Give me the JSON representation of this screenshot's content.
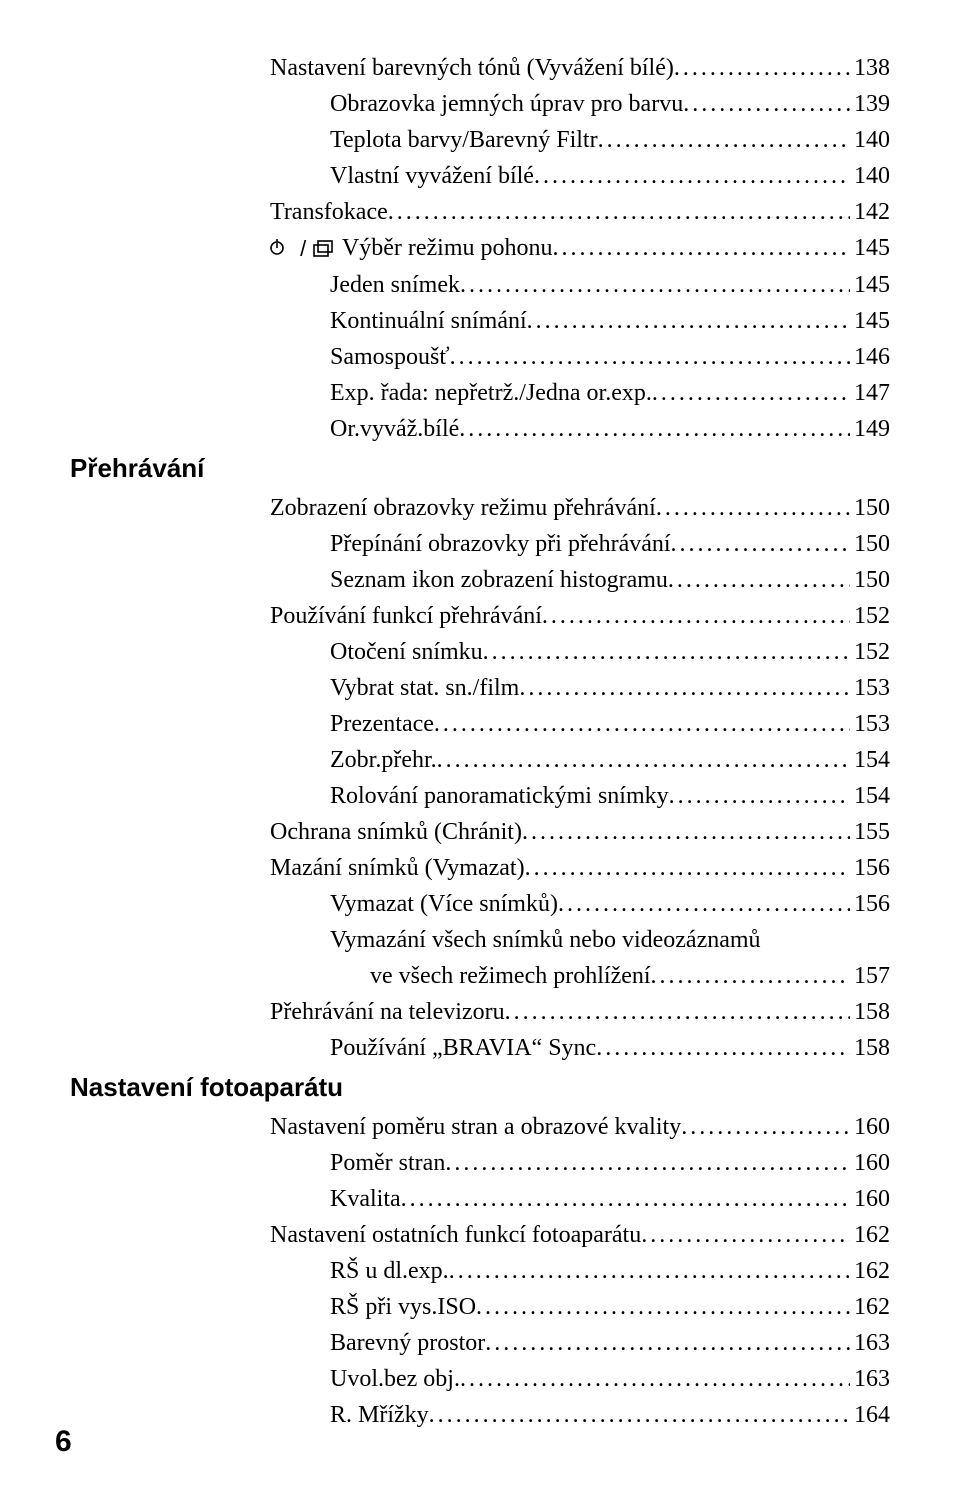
{
  "colors": {
    "text": "#000000",
    "background": "#ffffff"
  },
  "typography": {
    "body_font": "Times New Roman",
    "body_size_pt": 18,
    "heading_font": "Arial",
    "heading_weight": "bold",
    "heading_size_pt": 20
  },
  "page_number": "6",
  "entries": [
    {
      "indent": 1,
      "label": "Nastavení barevných tónů (Vyvážení bílé)",
      "page": "138"
    },
    {
      "indent": 2,
      "label": "Obrazovka jemných úprav pro barvu",
      "page": "139"
    },
    {
      "indent": 2,
      "label": "Teplota barvy/Barevný Filtr",
      "page": "140"
    },
    {
      "indent": 2,
      "label": "Vlastní vyvážení bílé",
      "page": "140"
    },
    {
      "indent": 1,
      "label": "Transfokace",
      "page": "142"
    },
    {
      "indent": 1,
      "icon": "drivemode",
      "label": " Výběr režimu pohonu",
      "page": "145"
    },
    {
      "indent": 2,
      "label": "Jeden snímek",
      "page": "145"
    },
    {
      "indent": 2,
      "label": "Kontinuální snímání",
      "page": "145"
    },
    {
      "indent": 2,
      "label": "Samospoušť",
      "page": "146"
    },
    {
      "indent": 2,
      "label": "Exp. řada: nepřetrž./Jedna or.exp. ",
      "page": "147"
    },
    {
      "indent": 2,
      "label": "Or.vyváž.bílé",
      "page": "149"
    }
  ],
  "section1": "Přehrávání",
  "entries2": [
    {
      "indent": 1,
      "label": "Zobrazení obrazovky režimu přehrávání",
      "page": "150"
    },
    {
      "indent": 2,
      "label": "Přepínání obrazovky při přehrávání",
      "page": "150"
    },
    {
      "indent": 2,
      "label": "Seznam ikon zobrazení histogramu",
      "page": "150"
    },
    {
      "indent": 1,
      "label": "Používání funkcí přehrávání",
      "page": "152"
    },
    {
      "indent": 2,
      "label": "Otočení snímku",
      "page": "152"
    },
    {
      "indent": 2,
      "label": "Vybrat stat. sn./film",
      "page": "153"
    },
    {
      "indent": 2,
      "label": "Prezentace",
      "page": "153"
    },
    {
      "indent": 2,
      "label": "Zobr.přehr. ",
      "page": "154"
    },
    {
      "indent": 2,
      "label": "Rolování panoramatickými snímky",
      "page": "154"
    },
    {
      "indent": 1,
      "label": "Ochrana snímků (Chránit)",
      "page": "155"
    },
    {
      "indent": 1,
      "label": "Mazání snímků (Vymazat)",
      "page": "156"
    },
    {
      "indent": 2,
      "label": "Vymazat (Více snímků)",
      "page": "156"
    },
    {
      "indent": 2,
      "multi": true,
      "label1": "Vymazání všech snímků nebo videozáznamů",
      "label2": "ve všech režimech prohlížení",
      "page": "157"
    },
    {
      "indent": 1,
      "label": "Přehrávání na televizoru",
      "page": "158"
    },
    {
      "indent": 2,
      "label": "Používání „BRAVIA“ Sync",
      "page": "158"
    }
  ],
  "section2": "Nastavení fotoaparátu",
  "entries3": [
    {
      "indent": 1,
      "label": "Nastavení poměru stran a obrazové kvality",
      "page": "160"
    },
    {
      "indent": 2,
      "label": "Poměr stran",
      "page": "160"
    },
    {
      "indent": 2,
      "label": "Kvalita",
      "page": "160"
    },
    {
      "indent": 1,
      "label": "Nastavení ostatních funkcí fotoaparátu",
      "page": "162"
    },
    {
      "indent": 2,
      "label": "RŠ u dl.exp. ",
      "page": "162"
    },
    {
      "indent": 2,
      "label": "RŠ při vys.ISO",
      "page": "162"
    },
    {
      "indent": 2,
      "label": "Barevný prostor",
      "page": "163"
    },
    {
      "indent": 2,
      "label": "Uvol.bez obj. ",
      "page": "163"
    },
    {
      "indent": 2,
      "label": "R. Mřížky",
      "page": "164"
    }
  ]
}
